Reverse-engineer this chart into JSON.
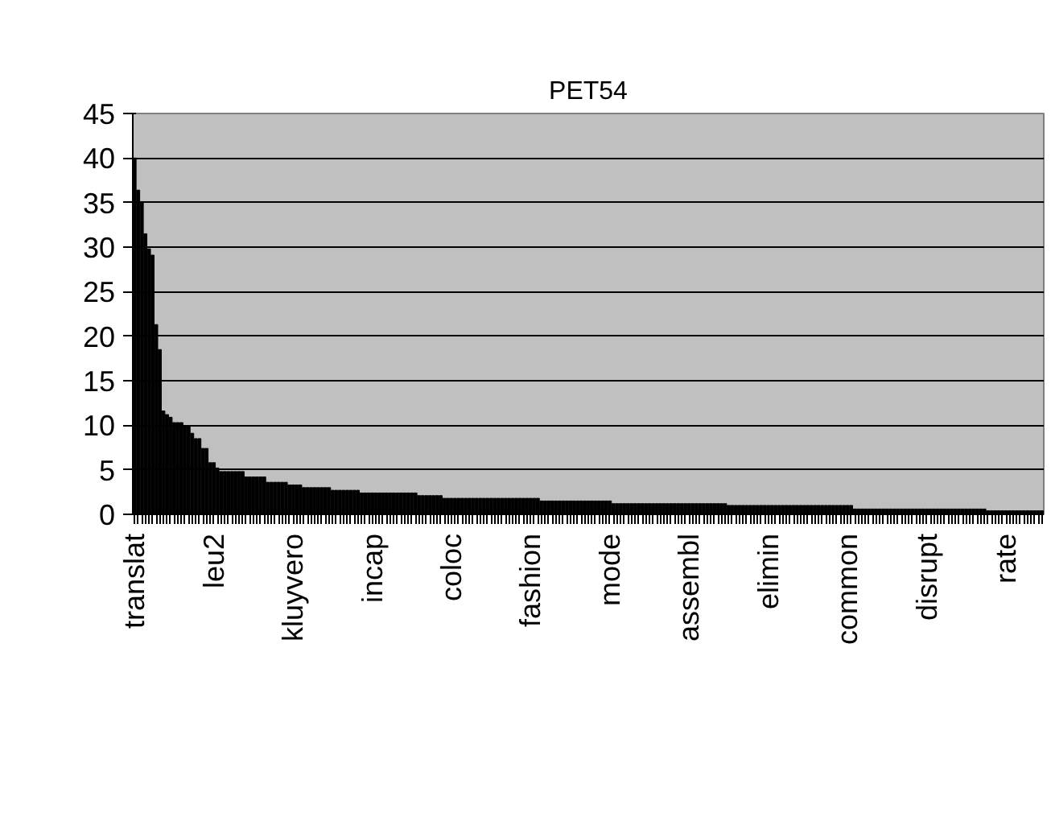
{
  "chart_data": {
    "type": "bar",
    "title": "PET54",
    "color": "#000000",
    "ylim": [
      0,
      45
    ],
    "yticks": [
      0,
      5,
      10,
      15,
      20,
      25,
      30,
      35,
      40,
      45
    ],
    "grid": "y",
    "categories": [
      "translat",
      null,
      null,
      null,
      null,
      null,
      null,
      null,
      null,
      null,
      null,
      null,
      null,
      null,
      null,
      null,
      null,
      null,
      null,
      null,
      null,
      null,
      "leu2",
      null,
      null,
      null,
      null,
      null,
      null,
      null,
      null,
      null,
      null,
      null,
      null,
      null,
      null,
      null,
      null,
      null,
      null,
      null,
      null,
      null,
      "kluyvero",
      null,
      null,
      null,
      null,
      null,
      null,
      null,
      null,
      null,
      null,
      null,
      null,
      null,
      null,
      null,
      null,
      null,
      null,
      null,
      null,
      null,
      "incap",
      null,
      null,
      null,
      null,
      null,
      null,
      null,
      null,
      null,
      null,
      null,
      null,
      null,
      null,
      null,
      null,
      null,
      null,
      null,
      null,
      null,
      "coloc",
      null,
      null,
      null,
      null,
      null,
      null,
      null,
      null,
      null,
      null,
      null,
      null,
      null,
      null,
      null,
      null,
      null,
      null,
      null,
      null,
      null,
      "fashion",
      null,
      null,
      null,
      null,
      null,
      null,
      null,
      null,
      null,
      null,
      null,
      null,
      null,
      null,
      null,
      null,
      null,
      null,
      null,
      null,
      null,
      "mode",
      null,
      null,
      null,
      null,
      null,
      null,
      null,
      null,
      null,
      null,
      null,
      null,
      null,
      null,
      null,
      null,
      null,
      null,
      null,
      null,
      null,
      "assembl",
      null,
      null,
      null,
      null,
      null,
      null,
      null,
      null,
      null,
      null,
      null,
      null,
      null,
      null,
      null,
      null,
      null,
      null,
      null,
      null,
      null,
      "elimin",
      null,
      null,
      null,
      null,
      null,
      null,
      null,
      null,
      null,
      null,
      null,
      null,
      null,
      null,
      null,
      null,
      null,
      null,
      null,
      null,
      null,
      "common",
      null,
      null,
      null,
      null,
      null,
      null,
      null,
      null,
      null,
      null,
      null,
      null,
      null,
      null,
      null,
      null,
      null,
      null,
      null,
      null,
      null,
      "disrupt",
      null,
      null,
      null,
      null,
      null,
      null,
      null,
      null,
      null,
      null,
      null,
      null,
      null,
      null,
      null,
      null,
      null,
      null,
      null,
      null,
      null,
      "rate",
      null,
      null,
      null,
      null,
      null,
      null,
      null,
      null,
      null,
      null
    ],
    "values": [
      40,
      36.4,
      35,
      31.5,
      29.8,
      29.1,
      21.3,
      18.5,
      11.6,
      11.2,
      10.9,
      10.3,
      10.3,
      10.3,
      9.9,
      9.9,
      9.1,
      8.5,
      8.5,
      7.4,
      7.4,
      5.8,
      5.8,
      5.2,
      4.8,
      4.8,
      4.8,
      4.8,
      4.8,
      4.8,
      4.8,
      4.2,
      4.2,
      4.2,
      4.2,
      4.2,
      4.2,
      3.6,
      3.6,
      3.6,
      3.6,
      3.6,
      3.6,
      3.3,
      3.3,
      3.3,
      3.3,
      3.0,
      3.0,
      3.0,
      3.0,
      3.0,
      3.0,
      3.0,
      3.0,
      2.7,
      2.7,
      2.7,
      2.7,
      2.7,
      2.7,
      2.7,
      2.7,
      2.4,
      2.4,
      2.4,
      2.4,
      2.4,
      2.4,
      2.4,
      2.4,
      2.4,
      2.4,
      2.4,
      2.4,
      2.4,
      2.4,
      2.4,
      2.4,
      2.1,
      2.1,
      2.1,
      2.1,
      2.1,
      2.1,
      2.1,
      1.8,
      1.8,
      1.8,
      1.8,
      1.8,
      1.8,
      1.8,
      1.8,
      1.8,
      1.8,
      1.8,
      1.8,
      1.8,
      1.8,
      1.8,
      1.8,
      1.8,
      1.8,
      1.8,
      1.8,
      1.8,
      1.8,
      1.8,
      1.8,
      1.8,
      1.8,
      1.8,
      1.5,
      1.5,
      1.5,
      1.5,
      1.5,
      1.5,
      1.5,
      1.5,
      1.5,
      1.5,
      1.5,
      1.5,
      1.5,
      1.5,
      1.5,
      1.5,
      1.5,
      1.5,
      1.5,
      1.5,
      1.2,
      1.2,
      1.2,
      1.2,
      1.2,
      1.2,
      1.2,
      1.2,
      1.2,
      1.2,
      1.2,
      1.2,
      1.2,
      1.2,
      1.2,
      1.2,
      1.2,
      1.2,
      1.2,
      1.2,
      1.2,
      1.2,
      1.2,
      1.2,
      1.2,
      1.2,
      1.2,
      1.2,
      1.2,
      1.2,
      1.2,
      1.2,
      1.0,
      1.0,
      1.0,
      1.0,
      1.0,
      1.0,
      1.0,
      1.0,
      1.0,
      1.0,
      1.0,
      1.0,
      1.0,
      1.0,
      1.0,
      1.0,
      1.0,
      1.0,
      1.0,
      1.0,
      1.0,
      1.0,
      1.0,
      1.0,
      1.0,
      1.0,
      1.0,
      1.0,
      1.0,
      1.0,
      1.0,
      1.0,
      1.0,
      1.0,
      1.0,
      0.6,
      0.6,
      0.6,
      0.6,
      0.6,
      0.6,
      0.6,
      0.6,
      0.6,
      0.6,
      0.6,
      0.6,
      0.6,
      0.6,
      0.6,
      0.6,
      0.6,
      0.6,
      0.6,
      0.6,
      0.6,
      0.6,
      0.6,
      0.6,
      0.6,
      0.6,
      0.6,
      0.6,
      0.6,
      0.6,
      0.6,
      0.6,
      0.6,
      0.6,
      0.6,
      0.6,
      0.6,
      0.4,
      0.4,
      0.4,
      0.4,
      0.4,
      0.4,
      0.4,
      0.4,
      0.4,
      0.4,
      0.4,
      0.4,
      0.4,
      0.4,
      0.4,
      0.4
    ]
  }
}
